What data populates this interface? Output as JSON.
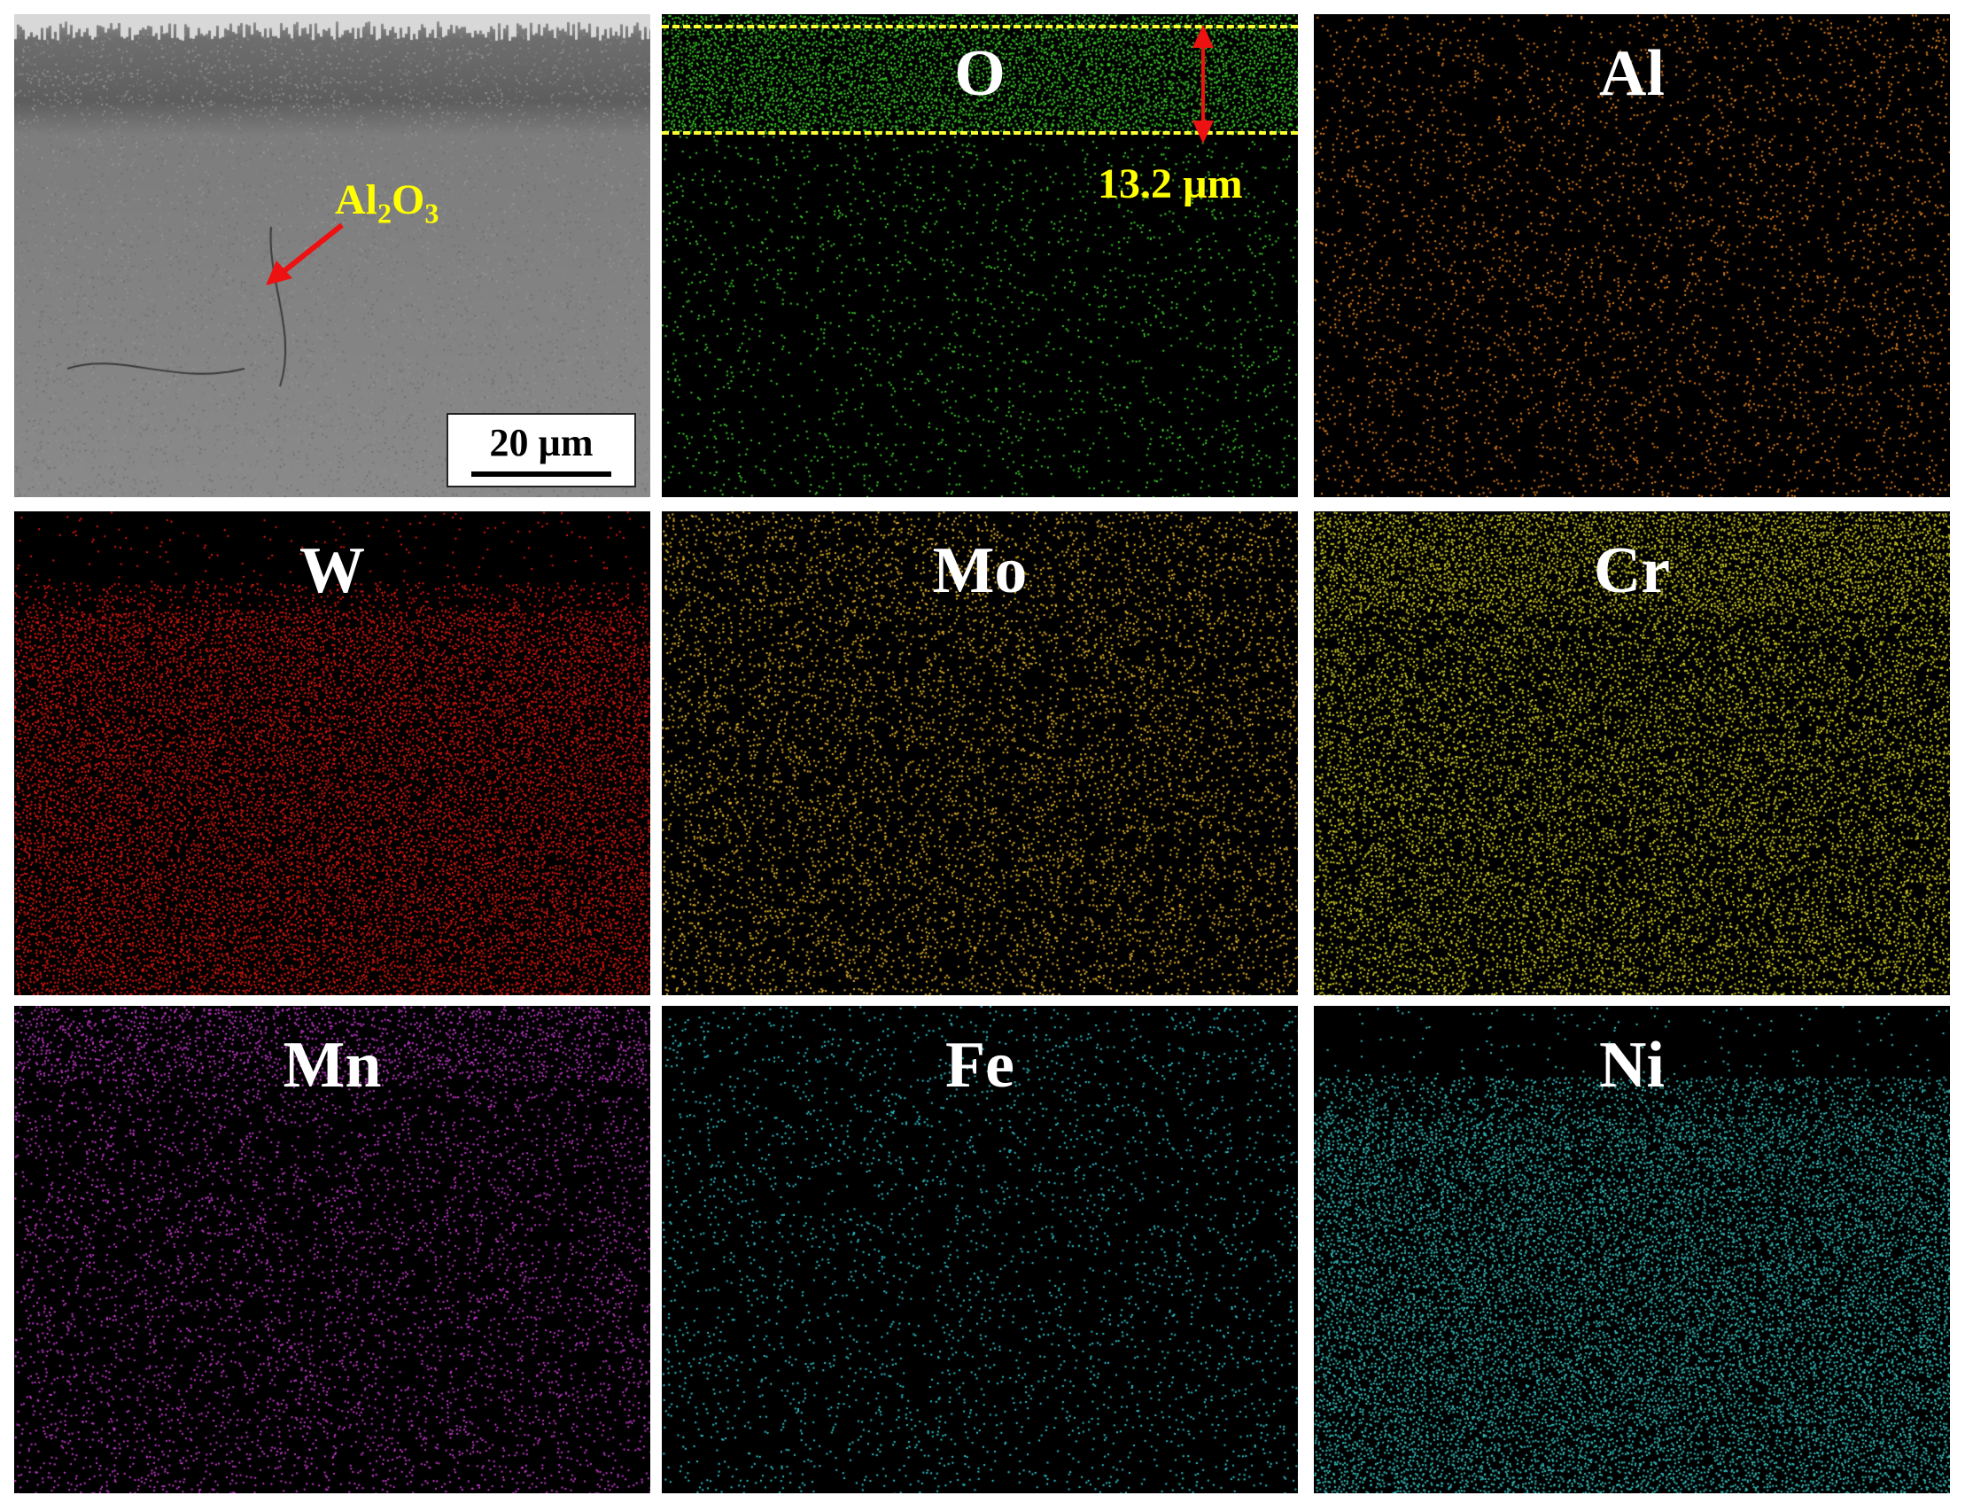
{
  "sem": {
    "scale_bar": "20 µm",
    "phase_label_main": "Al",
    "phase_label_sub1": "2",
    "phase_label_mid": "O",
    "phase_label_sub2": "3"
  },
  "oxide_thickness": "13.2 µm",
  "maps": [
    {
      "id": "o",
      "element": "O",
      "color": "#3ccf2a"
    },
    {
      "id": "al",
      "element": "Al",
      "color": "#e8831e"
    },
    {
      "id": "w",
      "element": "W",
      "color": "#e01a10"
    },
    {
      "id": "mo",
      "element": "Mo",
      "color": "#e6b52a"
    },
    {
      "id": "cr",
      "element": "Cr",
      "color": "#d8d428"
    },
    {
      "id": "mn",
      "element": "Mn",
      "color": "#c83ad0"
    },
    {
      "id": "fe",
      "element": "Fe",
      "color": "#2fc6cf"
    },
    {
      "id": "ni",
      "element": "Ni",
      "color": "#38c4c4"
    }
  ]
}
